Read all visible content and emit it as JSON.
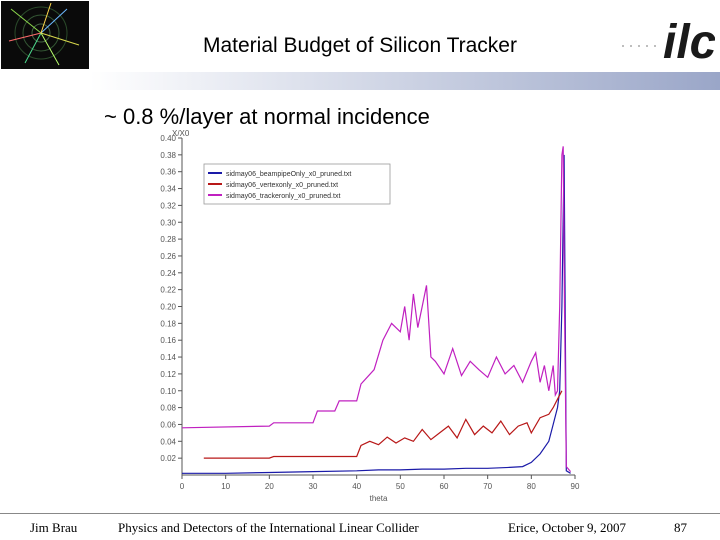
{
  "slide": {
    "title": "Material Budget of Silicon Tracker",
    "subtitle": "~ 0.8 %/layer at normal incidence",
    "logo_text": "ilc",
    "event_display_icon": "event-display-icon",
    "colors": {
      "accent_bar": "#9aa6c8",
      "text": "#000000"
    }
  },
  "footer": {
    "author": "Jim Brau",
    "course": "Physics and Detectors of the International Linear Collider",
    "date": "Erice, October 9, 2007",
    "page": "87"
  },
  "chart_data": {
    "type": "line",
    "title": "",
    "xlabel": "theta",
    "ylabel": "X/X0",
    "xlim": [
      0,
      90
    ],
    "ylim": [
      0,
      0.4
    ],
    "x_ticks": [
      0,
      10,
      20,
      30,
      40,
      50,
      60,
      70,
      80,
      90
    ],
    "y_ticks": [
      0.02,
      0.04,
      0.06,
      0.08,
      0.1,
      0.12,
      0.14,
      0.16,
      0.18,
      0.2,
      0.22,
      0.24,
      0.26,
      0.28,
      0.3,
      0.32,
      0.34,
      0.36,
      0.38,
      0.4
    ],
    "legend_position": "top-left",
    "grid": false,
    "series": [
      {
        "name": "sidmay06_beampipeOnly_x0_pruned.txt",
        "color": "#1a1aa8",
        "x": [
          0,
          10,
          20,
          30,
          40,
          45,
          50,
          55,
          60,
          65,
          70,
          75,
          78,
          80,
          82,
          84,
          85,
          86,
          86.5,
          87,
          87.5,
          88,
          89
        ],
        "y": [
          0.002,
          0.002,
          0.003,
          0.004,
          0.005,
          0.006,
          0.006,
          0.007,
          0.007,
          0.008,
          0.008,
          0.009,
          0.01,
          0.015,
          0.025,
          0.04,
          0.06,
          0.08,
          0.1,
          0.2,
          0.38,
          0.005,
          0.002
        ]
      },
      {
        "name": "sidmay06_vertexonly_x0_pruned.txt",
        "color": "#b81818",
        "x": [
          5,
          20,
          21,
          40,
          41,
          43,
          45,
          47,
          49,
          51,
          53,
          55,
          57,
          59,
          61,
          63,
          65,
          67,
          69,
          71,
          73,
          75,
          77,
          79,
          80,
          82,
          84,
          85,
          86,
          87
        ],
        "y": [
          0.02,
          0.02,
          0.022,
          0.022,
          0.035,
          0.04,
          0.036,
          0.045,
          0.038,
          0.044,
          0.04,
          0.054,
          0.042,
          0.05,
          0.058,
          0.044,
          0.066,
          0.048,
          0.058,
          0.05,
          0.064,
          0.048,
          0.058,
          0.062,
          0.05,
          0.068,
          0.072,
          0.08,
          0.09,
          0.1
        ]
      },
      {
        "name": "sidmay06_trackeronly_x0_pruned.txt",
        "color": "#c020c0",
        "x": [
          0,
          20,
          21,
          30,
          31,
          35,
          36,
          40,
          41,
          44,
          46,
          48,
          50,
          51,
          52,
          53,
          54,
          55,
          56,
          57,
          58,
          60,
          62,
          64,
          66,
          68,
          70,
          72,
          74,
          76,
          78,
          80,
          81,
          82,
          83,
          84,
          85,
          85.5,
          86,
          86.5,
          87,
          87.3,
          87.6,
          88,
          89
        ],
        "y": [
          0.056,
          0.058,
          0.062,
          0.062,
          0.076,
          0.076,
          0.088,
          0.088,
          0.108,
          0.125,
          0.16,
          0.18,
          0.17,
          0.2,
          0.16,
          0.215,
          0.175,
          0.2,
          0.225,
          0.14,
          0.135,
          0.12,
          0.15,
          0.118,
          0.135,
          0.125,
          0.116,
          0.14,
          0.12,
          0.13,
          0.11,
          0.135,
          0.145,
          0.11,
          0.13,
          0.1,
          0.13,
          0.095,
          0.1,
          0.2,
          0.38,
          0.39,
          0.2,
          0.01,
          0.004
        ]
      }
    ]
  }
}
